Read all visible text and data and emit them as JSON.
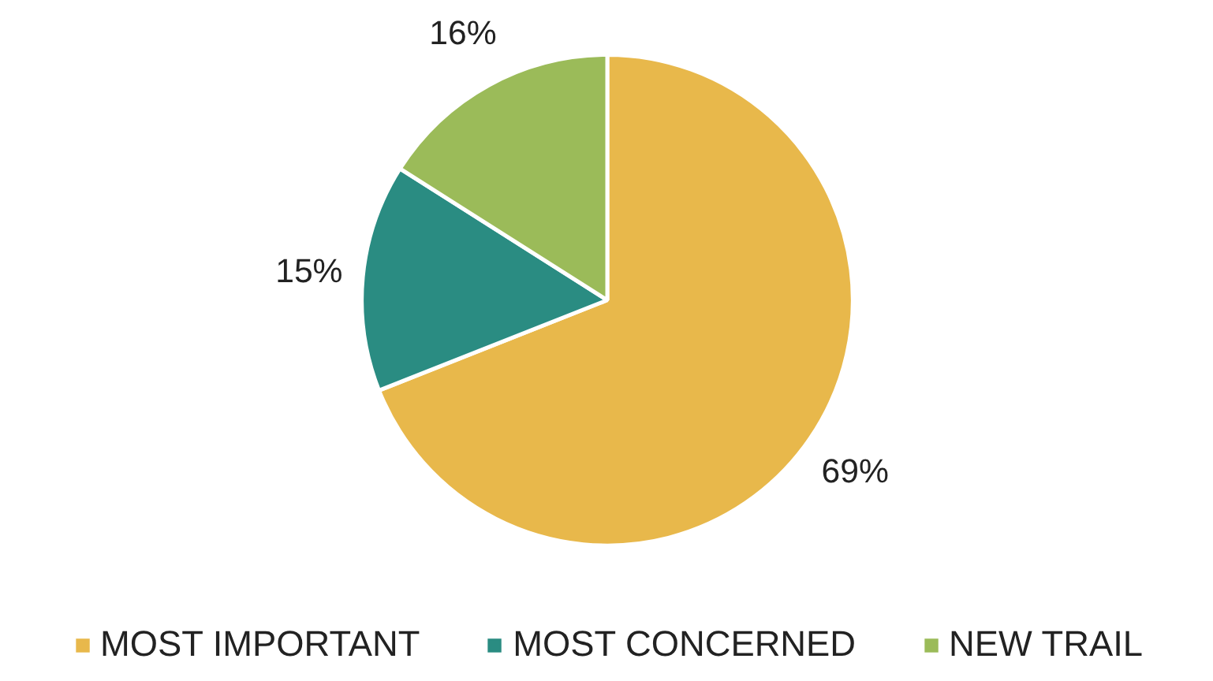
{
  "chart_data": {
    "type": "pie",
    "categories": [
      "MOST IMPORTANT",
      "MOST CONCERNED",
      "NEW TRAIL"
    ],
    "values": [
      69,
      15,
      16
    ],
    "colors": [
      "#e8b84b",
      "#2a8c82",
      "#9bbb59"
    ],
    "value_labels": [
      "69%",
      "15%",
      "16%"
    ],
    "legend": "bottom"
  }
}
